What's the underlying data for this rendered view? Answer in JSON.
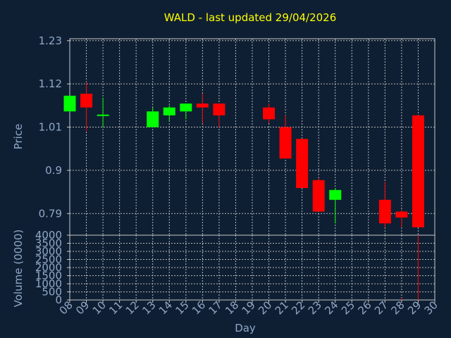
{
  "chart_data": [
    {
      "type": "candlestick",
      "title": "WALD - last updated 29/04/2026",
      "ylabel": "Price",
      "ylim": [
        0.735,
        1.235
      ],
      "yticks": [
        0.79,
        0.9,
        1.01,
        1.12,
        1.23
      ],
      "ytick_labels": [
        "0.79",
        "0.9",
        "1.01",
        "1.12",
        "1.23"
      ],
      "grid": true,
      "colors": {
        "up": "#00ff00",
        "down": "#ff0000",
        "background": "#0f1f33",
        "grid": "#c8c8c8",
        "title": "#ffff00",
        "text": "#8fa8c8"
      },
      "candles": [
        {
          "day": "08",
          "open": 1.05,
          "high": 1.09,
          "low": 1.05,
          "close": 1.09
        },
        {
          "day": "09",
          "open": 1.095,
          "high": 1.125,
          "low": 1.0,
          "close": 1.06
        },
        {
          "day": "10",
          "open": 1.04,
          "high": 1.085,
          "low": 1.01,
          "close": 1.04
        },
        {
          "day": "13",
          "open": 1.01,
          "high": 1.06,
          "low": 1.01,
          "close": 1.05
        },
        {
          "day": "14",
          "open": 1.04,
          "high": 1.065,
          "low": 1.025,
          "close": 1.06
        },
        {
          "day": "15",
          "open": 1.05,
          "high": 1.07,
          "low": 1.03,
          "close": 1.07
        },
        {
          "day": "16",
          "open": 1.07,
          "high": 1.095,
          "low": 1.02,
          "close": 1.06
        },
        {
          "day": "17",
          "open": 1.07,
          "high": 1.07,
          "low": 1.01,
          "close": 1.04
        },
        {
          "day": "20",
          "open": 1.06,
          "high": 1.07,
          "low": 1.02,
          "close": 1.03
        },
        {
          "day": "21",
          "open": 1.01,
          "high": 1.04,
          "low": 0.93,
          "close": 0.93
        },
        {
          "day": "22",
          "open": 0.98,
          "high": 0.98,
          "low": 0.855,
          "close": 0.855
        },
        {
          "day": "23",
          "open": 0.875,
          "high": 0.88,
          "low": 0.795,
          "close": 0.795
        },
        {
          "day": "24",
          "open": 0.825,
          "high": 0.855,
          "low": 0.765,
          "close": 0.85
        },
        {
          "day": "27",
          "open": 0.825,
          "high": 0.87,
          "low": 0.755,
          "close": 0.765
        },
        {
          "day": "28",
          "open": 0.795,
          "high": 0.8,
          "low": 0.755,
          "close": 0.78
        },
        {
          "day": "29",
          "open": 1.04,
          "high": 1.04,
          "low": 0.755,
          "close": 0.755
        }
      ]
    },
    {
      "type": "bar",
      "ylabel": "Volume (0000)",
      "xlabel": "Day",
      "ylim": [
        0,
        4000
      ],
      "yticks": [
        0,
        500,
        1000,
        1500,
        2000,
        2500,
        3000,
        3500,
        4000
      ],
      "ytick_labels": [
        "0",
        "500",
        "1000",
        "1500",
        "2000",
        "2500",
        "3000",
        "3500",
        "4000"
      ],
      "x_ticks": [
        "08",
        "09",
        "10",
        "11",
        "12",
        "13",
        "14",
        "15",
        "16",
        "17",
        "18",
        "19",
        "20",
        "21",
        "22",
        "23",
        "24",
        "25",
        "26",
        "27",
        "28",
        "29",
        "30"
      ],
      "grid": true,
      "bar_color": "#ff0000",
      "bars": [
        {
          "day": "28",
          "value": 120
        },
        {
          "day": "29",
          "value": 4000
        }
      ]
    }
  ]
}
